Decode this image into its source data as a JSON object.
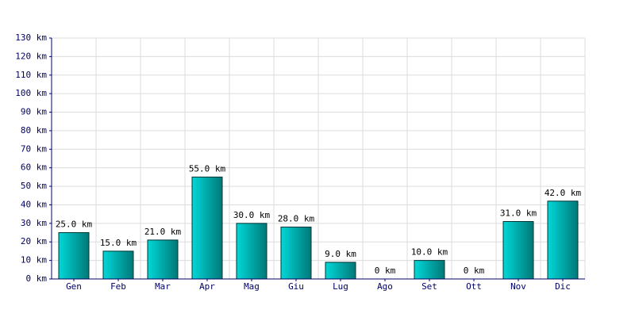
{
  "chart_data": {
    "type": "bar",
    "categories": [
      "Gen",
      "Feb",
      "Mar",
      "Apr",
      "Mag",
      "Giu",
      "Lug",
      "Ago",
      "Set",
      "Ott",
      "Nov",
      "Dic"
    ],
    "values": [
      25,
      15,
      21,
      55,
      30,
      28,
      9,
      0,
      10,
      0,
      31,
      42
    ],
    "value_labels": [
      "25.0 km",
      "15.0 km",
      "21.0 km",
      "55.0 km",
      "30.0 km",
      "28.0 km",
      "9.0 km",
      "0 km",
      "10.0 km",
      "0 km",
      "31.0 km",
      "42.0 km"
    ],
    "color": "#00d8d8",
    "ylim": [
      0,
      130
    ],
    "yticks": [
      {
        "value": 0,
        "label": "0 km"
      },
      {
        "value": 10,
        "label": "10 km"
      },
      {
        "value": 20,
        "label": "20 km"
      },
      {
        "value": 30,
        "label": "30 km"
      },
      {
        "value": 40,
        "label": "40 km"
      },
      {
        "value": 50,
        "label": "50 km"
      },
      {
        "value": 60,
        "label": "60 km"
      },
      {
        "value": 70,
        "label": "70 km"
      },
      {
        "value": 80,
        "label": "80 km"
      },
      {
        "value": 90,
        "label": "90 km"
      },
      {
        "value": 100,
        "label": "100 km"
      },
      {
        "value": 110,
        "label": "110 km"
      },
      {
        "value": 120,
        "label": "120 km"
      },
      {
        "value": 130,
        "label": "130 km"
      }
    ],
    "grid": true
  }
}
